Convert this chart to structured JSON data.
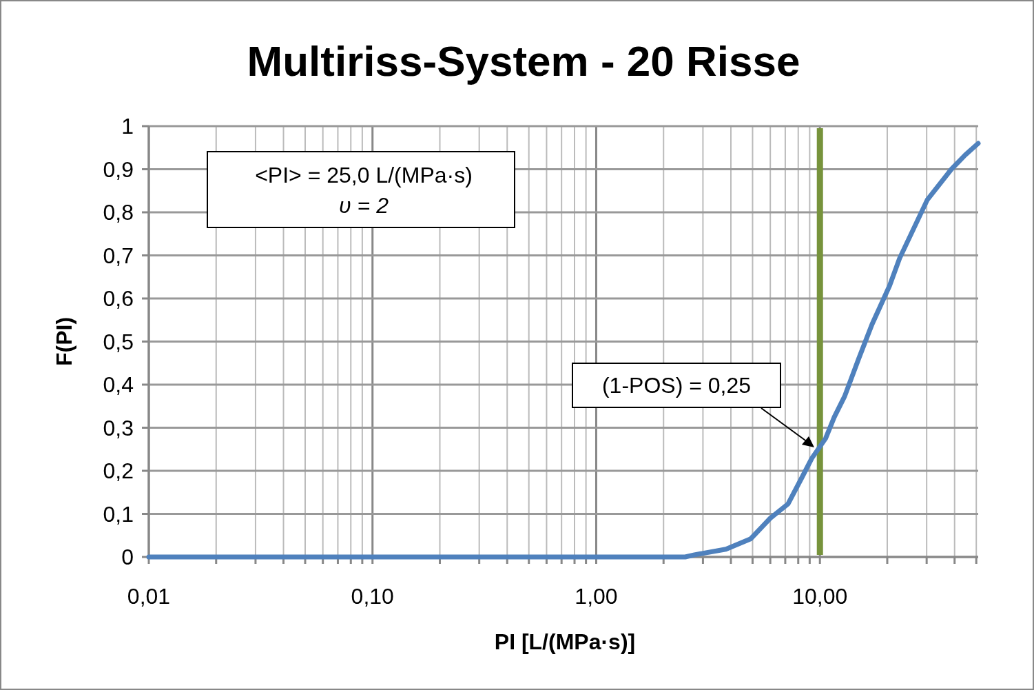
{
  "chart_data": {
    "type": "line",
    "title": "Multiriss-System - 20 Risse",
    "xlabel": "PI [L/(MPa·s)]",
    "ylabel": "F(PI)",
    "log": "x",
    "grid": true,
    "marker": "none",
    "line_style": "solid",
    "xlim": [
      0.01,
      51
    ],
    "ylim": [
      0,
      1
    ],
    "xticks": [
      {
        "value": 0.01,
        "label": "0,01"
      },
      {
        "value": 0.02,
        "label": null
      },
      {
        "value": 0.03,
        "label": null
      },
      {
        "value": 0.04,
        "label": null
      },
      {
        "value": 0.05,
        "label": null
      },
      {
        "value": 0.06,
        "label": null
      },
      {
        "value": 0.07,
        "label": null
      },
      {
        "value": 0.08,
        "label": null
      },
      {
        "value": 0.09,
        "label": null
      },
      {
        "value": 0.1,
        "label": "0,10"
      },
      {
        "value": 0.2,
        "label": null
      },
      {
        "value": 0.3,
        "label": null
      },
      {
        "value": 0.4,
        "label": null
      },
      {
        "value": 0.5,
        "label": null
      },
      {
        "value": 0.6,
        "label": null
      },
      {
        "value": 0.7,
        "label": null
      },
      {
        "value": 0.8,
        "label": null
      },
      {
        "value": 0.9,
        "label": null
      },
      {
        "value": 1,
        "label": "1,00"
      },
      {
        "value": 2,
        "label": null
      },
      {
        "value": 3,
        "label": null
      },
      {
        "value": 4,
        "label": null
      },
      {
        "value": 5,
        "label": null
      },
      {
        "value": 6,
        "label": null
      },
      {
        "value": 7,
        "label": null
      },
      {
        "value": 8,
        "label": null
      },
      {
        "value": 9,
        "label": null
      },
      {
        "value": 10,
        "label": "10,00"
      },
      {
        "value": 20,
        "label": null
      },
      {
        "value": 30,
        "label": null
      },
      {
        "value": 40,
        "label": null
      },
      {
        "value": 50,
        "label": null
      }
    ],
    "yticks": [
      0,
      {
        "value": 0.1,
        "label": "0,1"
      },
      {
        "value": 0.2,
        "label": "0,2"
      },
      {
        "value": 0.3,
        "label": "0,3"
      },
      {
        "value": 0.4,
        "label": "0,4"
      },
      {
        "value": 0.5,
        "label": "0,5"
      },
      {
        "value": 0.6,
        "label": "0,6"
      },
      {
        "value": 0.7,
        "label": "0,7"
      },
      {
        "value": 0.8,
        "label": "0,8"
      },
      {
        "value": 0.9,
        "label": "0,9"
      },
      1
    ],
    "series": [
      {
        "color": "#4f81bd",
        "x": [
          0.01,
          2.5,
          2.75,
          3.8,
          4.9,
          5.2,
          6.0,
          7.2,
          8.3,
          9.2,
          10.6,
          11.6,
          12.9,
          14.9,
          17.1,
          20.5,
          22.7,
          30.2,
          38.7,
          44.6,
          51
        ],
        "values": [
          0,
          0,
          0.005,
          0.018,
          0.042,
          0.056,
          0.09,
          0.123,
          0.184,
          0.229,
          0.275,
          0.325,
          0.373,
          0.46,
          0.54,
          0.63,
          0.693,
          0.829,
          0.9,
          0.933,
          0.96
        ]
      }
    ],
    "ref_lines": [
      {
        "axis": "x",
        "value": 10,
        "color": "#77933c"
      }
    ],
    "annotations": [
      "<PI> = 25,0 L/(MPa·s)",
      "υ = 2",
      "(1-POS) = 0,25"
    ]
  }
}
